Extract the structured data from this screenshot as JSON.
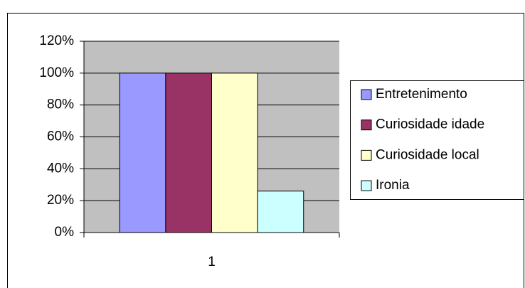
{
  "chart_data": {
    "type": "bar",
    "categories": [
      "1"
    ],
    "series": [
      {
        "name": "Entretenimento",
        "color": "#9999ff",
        "values": [
          100
        ]
      },
      {
        "name": "Curiosidade idade",
        "color": "#993366",
        "values": [
          100
        ]
      },
      {
        "name": "Curiosidade local",
        "color": "#ffffcc",
        "values": [
          100
        ]
      },
      {
        "name": "Ironia",
        "color": "#ccffff",
        "values": [
          26
        ]
      }
    ],
    "ylim": [
      0,
      120
    ],
    "yticks": [
      {
        "value": 0,
        "label": "0%"
      },
      {
        "value": 20,
        "label": "20%"
      },
      {
        "value": 40,
        "label": "40%"
      },
      {
        "value": 60,
        "label": "60%"
      },
      {
        "value": 80,
        "label": "80%"
      },
      {
        "value": 100,
        "label": "100%"
      },
      {
        "value": 120,
        "label": "120%"
      }
    ],
    "grid": true,
    "legend": "right"
  }
}
